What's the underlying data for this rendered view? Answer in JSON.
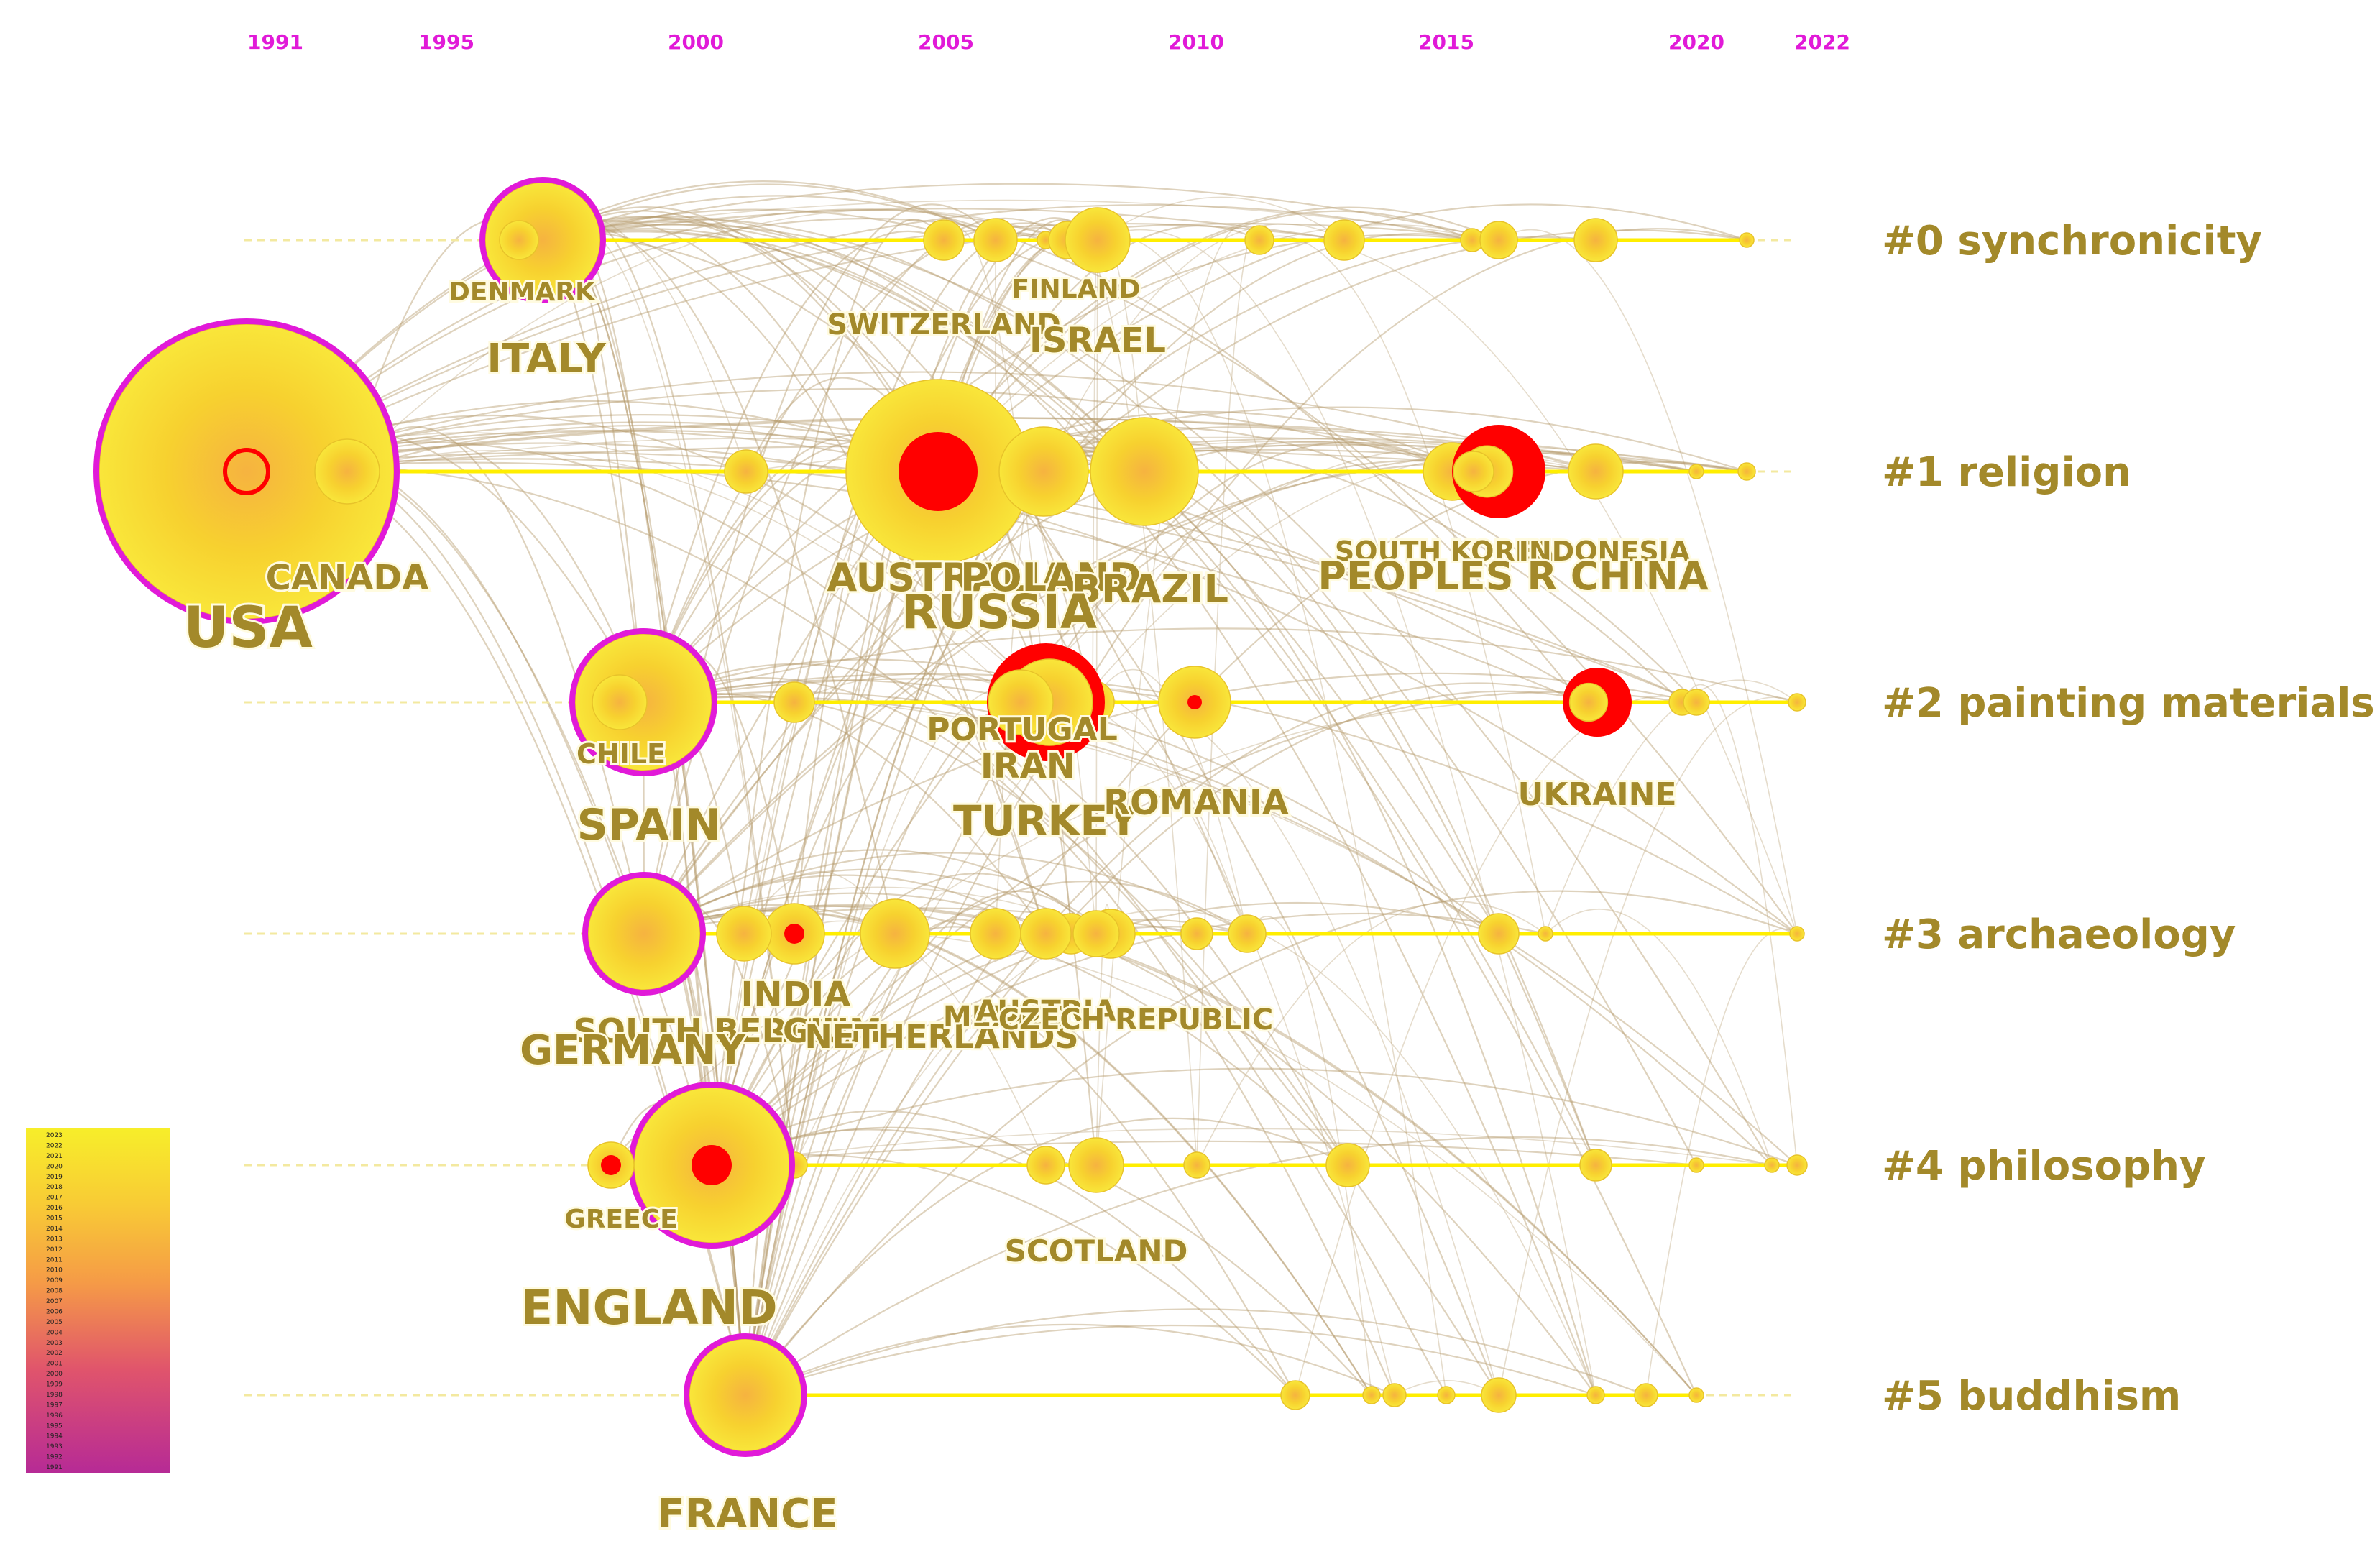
{
  "years": [
    "1991",
    "1995",
    "2000",
    "2005",
    "2010",
    "2015",
    "2020",
    "2022"
  ],
  "clusters": [
    {
      "label": "#0 synchronicity"
    },
    {
      "label": "#1 religion"
    },
    {
      "label": "#2 painting materials"
    },
    {
      "label": "#3 archaeology"
    },
    {
      "label": "#4 philosophy"
    },
    {
      "label": "#5 buddhism"
    }
  ],
  "countries": [
    {
      "name": "USA",
      "size": "xl"
    },
    {
      "name": "CANADA",
      "size": "m"
    },
    {
      "name": "DENMARK",
      "size": "s"
    },
    {
      "name": "ITALY",
      "size": "l"
    },
    {
      "name": "SWITZERLAND",
      "size": "s"
    },
    {
      "name": "FINLAND",
      "size": "s"
    },
    {
      "name": "ISRAEL",
      "size": "m"
    },
    {
      "name": "AUSTRALIA",
      "size": "l"
    },
    {
      "name": "POLAND",
      "size": "l"
    },
    {
      "name": "BRAZIL",
      "size": "l"
    },
    {
      "name": "RUSSIA",
      "size": "l"
    },
    {
      "name": "SOUTH KOREA",
      "size": "s"
    },
    {
      "name": "INDONESIA",
      "size": "s"
    },
    {
      "name": "PEOPLES R CHINA",
      "size": "l"
    },
    {
      "name": "CHILE",
      "size": "s"
    },
    {
      "name": "SPAIN",
      "size": "l"
    },
    {
      "name": "PORTUGAL",
      "size": "m"
    },
    {
      "name": "IRAN",
      "size": "m"
    },
    {
      "name": "TURKEY",
      "size": "l"
    },
    {
      "name": "ROMANIA",
      "size": "m"
    },
    {
      "name": "UKRAINE",
      "size": "m"
    },
    {
      "name": "INDIA",
      "size": "m"
    },
    {
      "name": "SOUTH AFRICA",
      "size": "m"
    },
    {
      "name": "BELGIUM",
      "size": "m"
    },
    {
      "name": "NETHERLANDS",
      "size": "m"
    },
    {
      "name": "GERMANY",
      "size": "l"
    },
    {
      "name": "MEXICO",
      "size": "s"
    },
    {
      "name": "AUSTRIA",
      "size": "s"
    },
    {
      "name": "CZECH REPUBLIC",
      "size": "s"
    },
    {
      "name": "GREECE",
      "size": "s"
    },
    {
      "name": "ENGLAND",
      "size": "l"
    },
    {
      "name": "SCOTLAND",
      "size": "s"
    },
    {
      "name": "FRANCE",
      "size": "l"
    }
  ],
  "legend": {
    "ticks": [
      "2023",
      "2022",
      "2021",
      "2020",
      "2019",
      "2018",
      "2017",
      "2016",
      "2015",
      "2014",
      "2013",
      "2012",
      "2011",
      "2010",
      "2009",
      "2008",
      "2007",
      "2006",
      "2005",
      "2004",
      "2003",
      "2002",
      "2001",
      "2000",
      "1999",
      "1998",
      "1997",
      "1996",
      "1995",
      "1994",
      "1993",
      "1992",
      "1991"
    ]
  },
  "colors": {
    "year_label": "#e11ad8",
    "cluster_label": "#a3892a",
    "timeline": "#ffee00",
    "node_fill": "#f7d431",
    "burst": "#ff0000",
    "centrality_ring": "#e11ad8",
    "link": "#b59b6c"
  }
}
